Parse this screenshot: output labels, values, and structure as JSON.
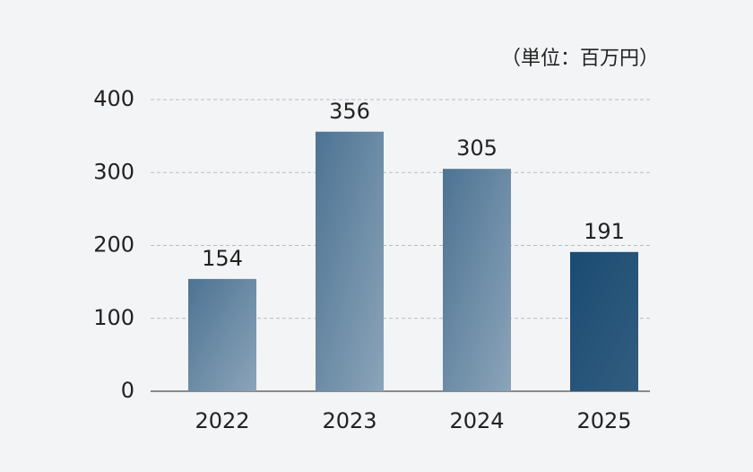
{
  "chart_data": {
    "type": "bar",
    "unit_label": "（単位：百万円）",
    "categories": [
      "2022",
      "2023",
      "2024",
      "2025"
    ],
    "values": [
      154,
      356,
      305,
      191
    ],
    "colors": [
      "#4d7393",
      "#4d7393",
      "#4d7393",
      "#1b4b72"
    ],
    "ylim": [
      0,
      400
    ],
    "yticks": [
      0,
      100,
      200,
      300,
      400
    ],
    "grid": true
  }
}
